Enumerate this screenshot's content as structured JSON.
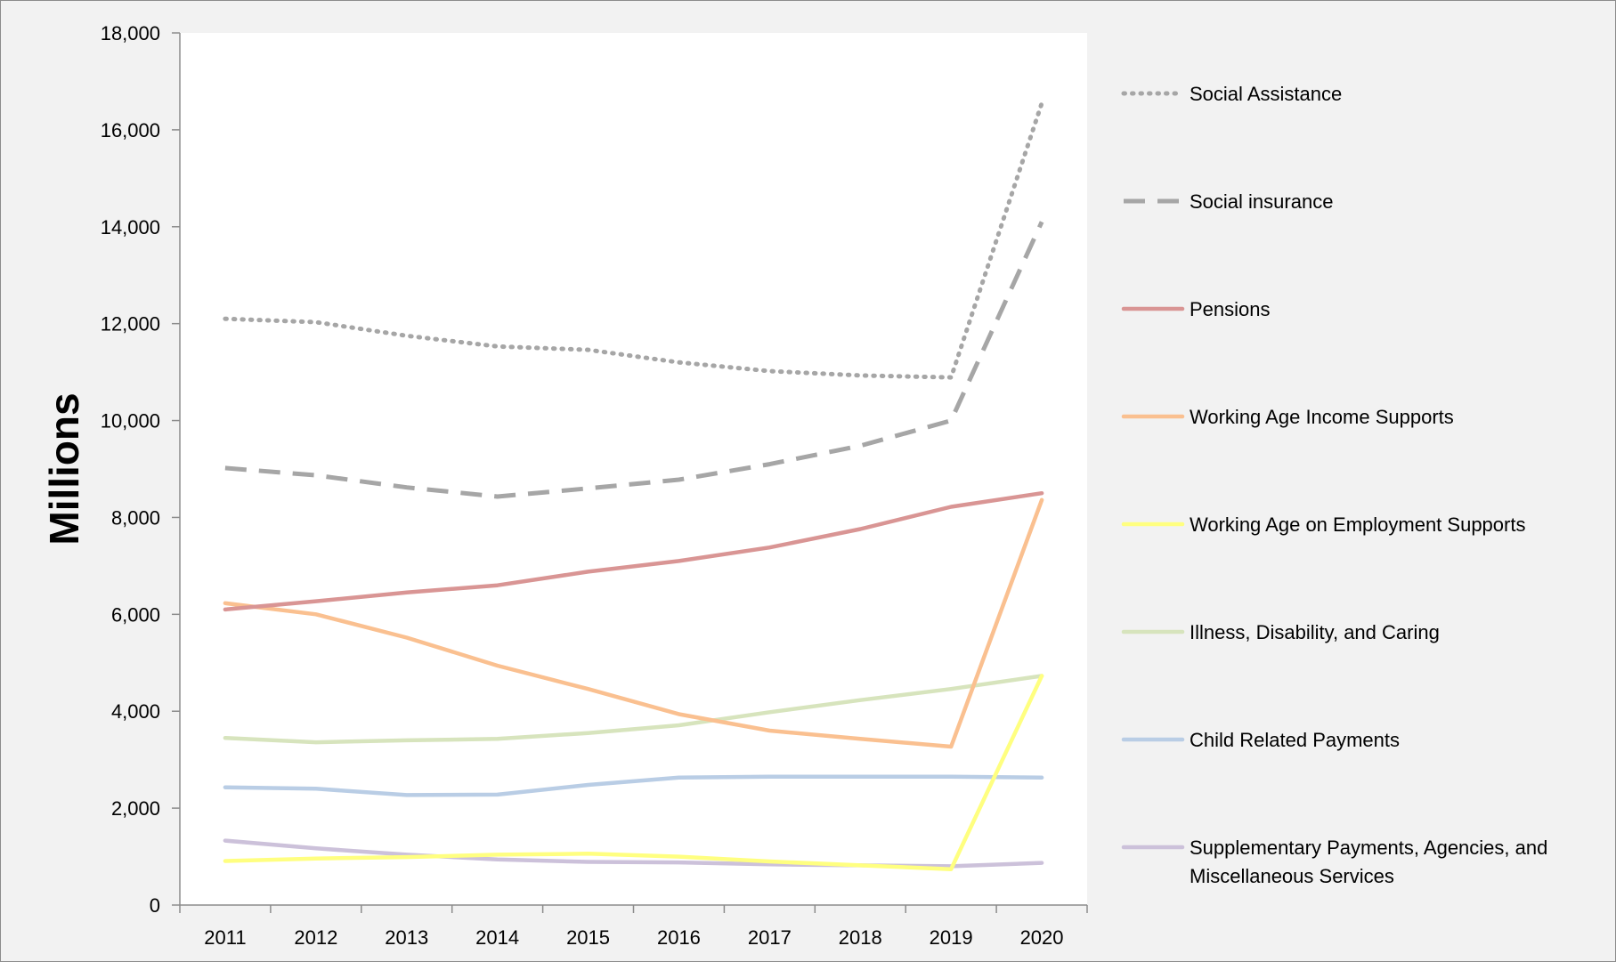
{
  "colors": {
    "page_background": "#f2f2f2",
    "plot_background": "#ffffff",
    "border": "#8c8c8c",
    "axis": "#8c8c8c",
    "text": "#000000"
  },
  "chart_data": {
    "type": "line",
    "title": "",
    "xlabel": "",
    "ylabel": "Millions",
    "ylim": [
      0,
      18000
    ],
    "yticks": [
      0,
      2000,
      4000,
      6000,
      8000,
      10000,
      12000,
      14000,
      16000,
      18000
    ],
    "ytick_labels": [
      "0",
      "2,000",
      "4,000",
      "6,000",
      "8,000",
      "10,000",
      "12,000",
      "14,000",
      "16,000",
      "18,000"
    ],
    "grid": false,
    "legend_position": "right",
    "x": [
      "2011",
      "2012",
      "2013",
      "2014",
      "2015",
      "2016",
      "2017",
      "2018",
      "2019",
      "2020"
    ],
    "series": [
      {
        "name": "Social Assistance",
        "style": "dotted",
        "color": "#a6a6a6",
        "values": [
          12100,
          12030,
          11750,
          11530,
          11460,
          11200,
          11020,
          10930,
          10890,
          16550
        ]
      },
      {
        "name": "Social insurance",
        "style": "dashed",
        "color": "#a6a6a6",
        "values": [
          9020,
          8870,
          8620,
          8430,
          8600,
          8780,
          9100,
          9480,
          10000,
          14100
        ]
      },
      {
        "name": "Pensions",
        "style": "solid",
        "color": "#d99594",
        "values": [
          6100,
          6270,
          6450,
          6600,
          6880,
          7100,
          7380,
          7760,
          8220,
          8500
        ]
      },
      {
        "name": "Working Age Income Supports",
        "style": "solid",
        "color": "#fac090",
        "values": [
          6230,
          6000,
          5520,
          4940,
          4460,
          3940,
          3600,
          3430,
          3270,
          8360
        ]
      },
      {
        "name": "Working Age on Employment Supports",
        "style": "solid",
        "color": "#ffff80",
        "values": [
          910,
          960,
          990,
          1040,
          1060,
          1000,
          900,
          820,
          740,
          4730
        ]
      },
      {
        "name": "Illness, Disability, and Caring",
        "style": "solid",
        "color": "#d7e4bd",
        "values": [
          3450,
          3360,
          3400,
          3430,
          3550,
          3710,
          3980,
          4230,
          4460,
          4730
        ]
      },
      {
        "name": "Child Related Payments",
        "style": "solid",
        "color": "#b9cde5",
        "values": [
          2430,
          2400,
          2270,
          2280,
          2480,
          2630,
          2650,
          2650,
          2650,
          2630
        ]
      },
      {
        "name": "Supplementary Payments, Agencies, and Miscellaneous Services",
        "style": "solid",
        "color": "#ccc1da",
        "values": [
          1330,
          1170,
          1040,
          940,
          890,
          880,
          840,
          820,
          800,
          870
        ]
      }
    ],
    "legend_lines": [
      [
        "Social Assistance"
      ],
      [
        "Social insurance"
      ],
      [
        "Pensions"
      ],
      [
        "Working Age Income Supports"
      ],
      [
        "Working Age on Employment Supports"
      ],
      [
        "Illness, Disability, and Caring"
      ],
      [
        "Child Related Payments"
      ],
      [
        "Supplementary Payments, Agencies, and",
        "Miscellaneous Services"
      ]
    ]
  }
}
